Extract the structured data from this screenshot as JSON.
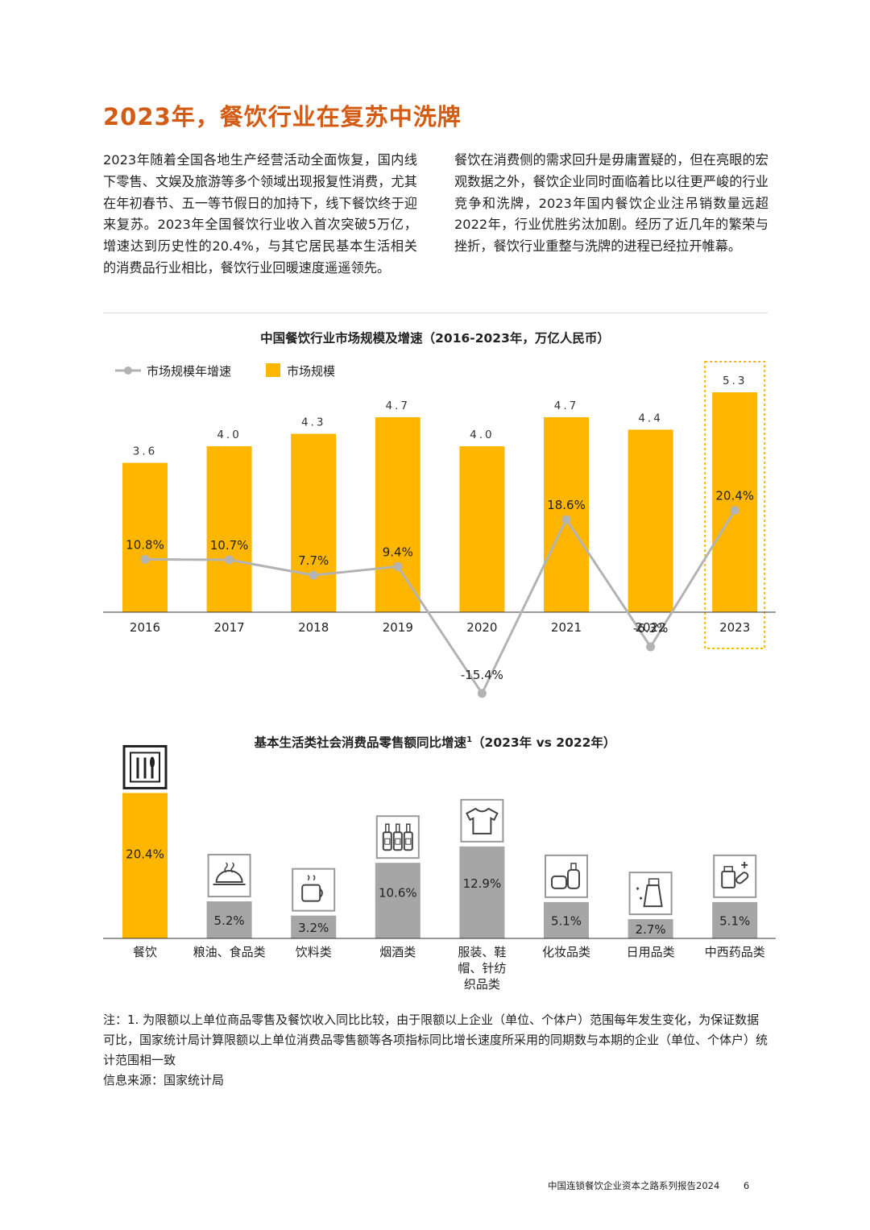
{
  "page": {
    "title": "2023年，餐饮行业在复苏中洗牌",
    "para_left": "2023年随着全国各地生产经营活动全面恢复，国内线下零售、文娱及旅游等多个领域出现报复性消费，尤其在年初春节、五一等节假日的加持下，线下餐饮终于迎来复苏。2023年全国餐饮行业收入首次突破5万亿，增速达到历史性的20.4%，与其它居民基本生活相关的消费品行业相比，餐饮行业回暖速度遥遥领先。",
    "para_right": "餐饮在消费侧的需求回升是毋庸置疑的，但在亮眼的宏观数据之外，餐饮企业同时面临着比以往更严峻的行业竞争和洗牌，2023年国内餐饮企业注吊销数量远超2022年，行业优胜劣汰加剧。经历了近几年的繁荣与挫折，餐饮行业重整与洗牌的进程已经拉开帷幕。"
  },
  "notes": {
    "note": "注：1. 为限额以上单位商品零售及餐饮收入同比比较，由于限额以上企业（单位、个体户）范围每年发生变化，为保证数据可比，国家统计局计算限额以上单位消费品零售额等各项指标同比增长速度所采用的同期数与本期的企业（单位、个体户）统计范围相一致",
    "source": "信息来源：国家统计局"
  },
  "footer": {
    "text": "中国连锁餐饮企业资本之路系列报告2024",
    "page_number": "6"
  },
  "colors": {
    "accent": "#d35b13",
    "bar_yellow": "#ffb600",
    "bar_grey": "#a6a6a6",
    "line_grey": "#b3b3b3"
  },
  "chart_data": [
    {
      "type": "bar",
      "title": "中国餐饮行业市场规模及增速（2016-2023年，万亿人民币）",
      "categories": [
        "2016",
        "2017",
        "2018",
        "2019",
        "2020",
        "2021",
        "2022",
        "2023"
      ],
      "series": [
        {
          "name": "市场规模",
          "kind": "bar",
          "values": [
            3.6,
            4.0,
            4.3,
            4.7,
            4.0,
            4.7,
            4.4,
            5.3
          ],
          "labels": [
            "3.6",
            "4.0",
            "4.3",
            "4.7",
            "4.0",
            "4.7",
            "4.4",
            "5.3"
          ]
        },
        {
          "name": "市场规模年增速",
          "kind": "line",
          "values": [
            10.8,
            10.7,
            7.7,
            9.4,
            -15.4,
            18.6,
            -6.3,
            20.4
          ],
          "labels": [
            "10.8%",
            "10.7%",
            "7.7%",
            "9.4%",
            "-15.4%",
            "18.6%",
            "-6.3%",
            "20.4%"
          ]
        }
      ],
      "highlight": "2023",
      "legend_position": "top-left"
    },
    {
      "type": "bar",
      "title": "基本生活类社会消费品零售额同比增速",
      "title_sup": "1",
      "title_suffix": "（2023年 vs 2022年）",
      "categories": [
        "餐饮",
        "粮油、食品类",
        "饮料类",
        "烟酒类",
        "服装、鞋帽、针纺织品类",
        "化妆品类",
        "日用品类",
        "中西药品类"
      ],
      "category_lines": [
        [
          "餐饮"
        ],
        [
          "粮油、食品类"
        ],
        [
          "饮料类"
        ],
        [
          "烟酒类"
        ],
        [
          "服装、鞋",
          "帽、针纺",
          "织品类"
        ],
        [
          "化妆品类"
        ],
        [
          "日用品类"
        ],
        [
          "中西药品类"
        ]
      ],
      "values": [
        20.4,
        5.2,
        3.2,
        10.6,
        12.9,
        5.1,
        2.7,
        5.1
      ],
      "labels": [
        "20.4%",
        "5.2%",
        "3.2%",
        "10.6%",
        "12.9%",
        "5.1%",
        "2.7%",
        "5.1%"
      ],
      "icons": [
        "cutlery-icon",
        "food-cloche-icon",
        "coffee-cup-icon",
        "bottles-icon",
        "tshirt-icon",
        "cosmetics-icon",
        "spray-bottle-icon",
        "medicine-icon"
      ],
      "highlight": "餐饮"
    }
  ]
}
